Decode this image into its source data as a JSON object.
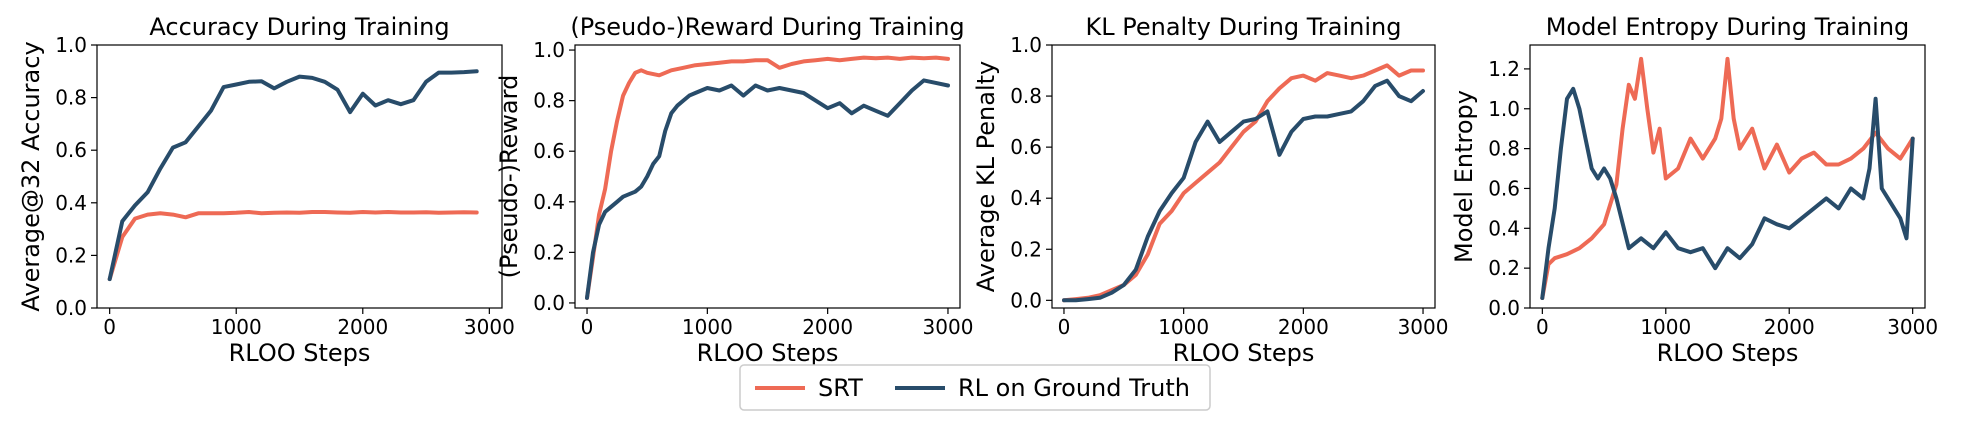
{
  "colors": {
    "srt": "#ee6a55",
    "gt": "#284c6a"
  },
  "legend": [
    {
      "name": "SRT",
      "color": "#ee6a55"
    },
    {
      "name": "RL on Ground Truth",
      "color": "#284c6a"
    }
  ],
  "chart_data": [
    {
      "type": "line",
      "title": "Accuracy During Training",
      "xlabel": "RLOO Steps",
      "ylabel": "Average@32 Accuracy",
      "xlim": [
        -100,
        3100
      ],
      "ylim": [
        0.0,
        1.0
      ],
      "xticks": [
        0,
        1000,
        2000,
        3000
      ],
      "yticks": [
        0.0,
        0.2,
        0.4,
        0.6,
        0.8,
        1.0
      ],
      "grid": false,
      "series": [
        {
          "name": "SRT",
          "x": [
            0,
            100,
            200,
            300,
            400,
            500,
            600,
            700,
            800,
            900,
            1000,
            1100,
            1200,
            1300,
            1400,
            1500,
            1600,
            1700,
            1800,
            1900,
            2000,
            2100,
            2200,
            2300,
            2400,
            2500,
            2600,
            2700,
            2800,
            2900
          ],
          "y": [
            0.11,
            0.27,
            0.34,
            0.355,
            0.36,
            0.355,
            0.345,
            0.36,
            0.36,
            0.36,
            0.362,
            0.365,
            0.36,
            0.362,
            0.363,
            0.362,
            0.365,
            0.365,
            0.363,
            0.362,
            0.365,
            0.363,
            0.365,
            0.363,
            0.363,
            0.364,
            0.362,
            0.363,
            0.364,
            0.363
          ]
        },
        {
          "name": "RL on Ground Truth",
          "x": [
            0,
            100,
            200,
            300,
            400,
            500,
            600,
            700,
            800,
            900,
            1000,
            1100,
            1200,
            1300,
            1400,
            1500,
            1600,
            1700,
            1800,
            1900,
            2000,
            2100,
            2200,
            2300,
            2400,
            2500,
            2600,
            2700,
            2800,
            2900
          ],
          "y": [
            0.11,
            0.33,
            0.39,
            0.44,
            0.53,
            0.61,
            0.63,
            0.69,
            0.75,
            0.84,
            0.85,
            0.86,
            0.862,
            0.835,
            0.86,
            0.88,
            0.875,
            0.86,
            0.83,
            0.745,
            0.815,
            0.77,
            0.79,
            0.775,
            0.79,
            0.86,
            0.895,
            0.895,
            0.897,
            0.9
          ]
        }
      ]
    },
    {
      "type": "line",
      "title": "(Pseudo-)Reward During Training",
      "xlabel": "RLOO Steps",
      "ylabel": "(Pseudo-)Reward",
      "xlim": [
        -100,
        3100
      ],
      "ylim": [
        -0.02,
        1.02
      ],
      "xticks": [
        0,
        1000,
        2000,
        3000
      ],
      "yticks": [
        0.0,
        0.2,
        0.4,
        0.6,
        0.8,
        1.0
      ],
      "grid": false,
      "series": [
        {
          "name": "SRT",
          "x": [
            0,
            50,
            100,
            150,
            200,
            250,
            300,
            350,
            400,
            450,
            500,
            600,
            700,
            800,
            900,
            1000,
            1100,
            1200,
            1300,
            1400,
            1500,
            1600,
            1700,
            1800,
            1900,
            2000,
            2100,
            2200,
            2300,
            2400,
            2500,
            2600,
            2700,
            2800,
            2900,
            3000
          ],
          "y": [
            0.02,
            0.18,
            0.35,
            0.45,
            0.6,
            0.72,
            0.82,
            0.87,
            0.91,
            0.92,
            0.91,
            0.9,
            0.92,
            0.93,
            0.94,
            0.945,
            0.95,
            0.955,
            0.955,
            0.96,
            0.96,
            0.93,
            0.945,
            0.955,
            0.96,
            0.965,
            0.96,
            0.965,
            0.97,
            0.968,
            0.97,
            0.965,
            0.97,
            0.968,
            0.97,
            0.965
          ]
        },
        {
          "name": "RL on Ground Truth",
          "x": [
            0,
            50,
            100,
            150,
            200,
            250,
            300,
            350,
            400,
            450,
            500,
            550,
            600,
            650,
            700,
            750,
            800,
            850,
            900,
            1000,
            1100,
            1200,
            1300,
            1400,
            1500,
            1600,
            1700,
            1800,
            1900,
            2000,
            2100,
            2200,
            2300,
            2400,
            2500,
            2600,
            2700,
            2800,
            2900,
            3000
          ],
          "y": [
            0.02,
            0.2,
            0.31,
            0.36,
            0.38,
            0.4,
            0.42,
            0.43,
            0.44,
            0.46,
            0.5,
            0.55,
            0.58,
            0.68,
            0.75,
            0.78,
            0.8,
            0.82,
            0.83,
            0.85,
            0.84,
            0.86,
            0.82,
            0.86,
            0.84,
            0.85,
            0.84,
            0.83,
            0.8,
            0.77,
            0.79,
            0.75,
            0.78,
            0.76,
            0.74,
            0.79,
            0.84,
            0.88,
            0.87,
            0.86
          ]
        }
      ]
    },
    {
      "type": "line",
      "title": "KL Penalty During Training",
      "xlabel": "RLOO Steps",
      "ylabel": "Average KL Penalty",
      "xlim": [
        -100,
        3100
      ],
      "ylim": [
        -0.03,
        1.0
      ],
      "xticks": [
        0,
        1000,
        2000,
        3000
      ],
      "yticks": [
        0.0,
        0.2,
        0.4,
        0.6,
        0.8,
        1.0
      ],
      "grid": false,
      "series": [
        {
          "name": "SRT",
          "x": [
            0,
            100,
            200,
            300,
            400,
            500,
            600,
            700,
            800,
            900,
            1000,
            1100,
            1200,
            1300,
            1400,
            1500,
            1600,
            1700,
            1800,
            1900,
            2000,
            2100,
            2200,
            2300,
            2400,
            2500,
            2600,
            2700,
            2800,
            2900,
            3000
          ],
          "y": [
            0.0,
            0.005,
            0.01,
            0.02,
            0.04,
            0.06,
            0.1,
            0.18,
            0.3,
            0.35,
            0.42,
            0.46,
            0.5,
            0.54,
            0.6,
            0.66,
            0.7,
            0.78,
            0.83,
            0.87,
            0.88,
            0.86,
            0.89,
            0.88,
            0.87,
            0.88,
            0.9,
            0.92,
            0.88,
            0.9,
            0.9
          ]
        },
        {
          "name": "RL on Ground Truth",
          "x": [
            0,
            100,
            200,
            300,
            400,
            500,
            600,
            700,
            800,
            900,
            1000,
            1100,
            1200,
            1300,
            1400,
            1500,
            1600,
            1700,
            1800,
            1900,
            2000,
            2100,
            2200,
            2300,
            2400,
            2500,
            2600,
            2700,
            2800,
            2900,
            3000
          ],
          "y": [
            0.0,
            0.0,
            0.005,
            0.01,
            0.03,
            0.06,
            0.12,
            0.25,
            0.35,
            0.42,
            0.48,
            0.62,
            0.7,
            0.62,
            0.66,
            0.7,
            0.71,
            0.74,
            0.57,
            0.66,
            0.71,
            0.72,
            0.72,
            0.73,
            0.74,
            0.78,
            0.84,
            0.86,
            0.8,
            0.78,
            0.82
          ]
        }
      ]
    },
    {
      "type": "line",
      "title": "Model Entropy During Training",
      "xlabel": "RLOO Steps",
      "ylabel": "Model Entropy",
      "xlim": [
        -100,
        3100
      ],
      "ylim": [
        0.0,
        1.32
      ],
      "xticks": [
        0,
        1000,
        2000,
        3000
      ],
      "yticks": [
        0.0,
        0.2,
        0.4,
        0.6,
        0.8,
        1.0,
        1.2
      ],
      "grid": false,
      "series": [
        {
          "name": "SRT",
          "x": [
            0,
            50,
            100,
            200,
            300,
            400,
            500,
            600,
            650,
            700,
            750,
            800,
            850,
            900,
            950,
            1000,
            1100,
            1200,
            1300,
            1400,
            1450,
            1500,
            1550,
            1600,
            1700,
            1800,
            1900,
            2000,
            2100,
            2200,
            2300,
            2400,
            2500,
            2600,
            2700,
            2800,
            2900,
            3000
          ],
          "y": [
            0.05,
            0.22,
            0.25,
            0.27,
            0.3,
            0.35,
            0.42,
            0.62,
            0.9,
            1.12,
            1.05,
            1.25,
            1.0,
            0.78,
            0.9,
            0.65,
            0.7,
            0.85,
            0.75,
            0.85,
            0.95,
            1.25,
            0.95,
            0.8,
            0.9,
            0.7,
            0.82,
            0.68,
            0.75,
            0.78,
            0.72,
            0.72,
            0.75,
            0.8,
            0.88,
            0.8,
            0.75,
            0.85
          ]
        },
        {
          "name": "RL on Ground Truth",
          "x": [
            0,
            50,
            100,
            150,
            200,
            250,
            300,
            350,
            400,
            450,
            500,
            550,
            600,
            700,
            800,
            900,
            1000,
            1100,
            1200,
            1300,
            1400,
            1500,
            1600,
            1700,
            1800,
            1900,
            2000,
            2100,
            2200,
            2300,
            2400,
            2500,
            2600,
            2650,
            2700,
            2750,
            2800,
            2900,
            2950,
            3000
          ],
          "y": [
            0.05,
            0.3,
            0.5,
            0.8,
            1.05,
            1.1,
            1.0,
            0.85,
            0.7,
            0.65,
            0.7,
            0.65,
            0.55,
            0.3,
            0.35,
            0.3,
            0.38,
            0.3,
            0.28,
            0.3,
            0.2,
            0.3,
            0.25,
            0.32,
            0.45,
            0.42,
            0.4,
            0.45,
            0.5,
            0.55,
            0.5,
            0.6,
            0.55,
            0.7,
            1.05,
            0.6,
            0.55,
            0.45,
            0.35,
            0.85
          ]
        }
      ]
    }
  ]
}
